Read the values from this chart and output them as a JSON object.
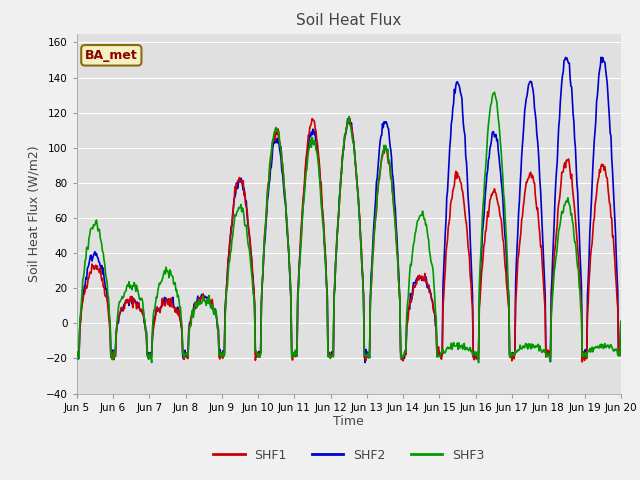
{
  "title": "Soil Heat Flux",
  "ylabel": "Soil Heat Flux (W/m2)",
  "xlabel": "Time",
  "ylim": [
    -40,
    165
  ],
  "yticks": [
    -40,
    -20,
    0,
    20,
    40,
    60,
    80,
    100,
    120,
    140,
    160
  ],
  "annotation_text": "BA_met",
  "colors": {
    "SHF1": "#cc0000",
    "SHF2": "#0000cc",
    "SHF3": "#009900"
  },
  "fig_bg": "#f0f0f0",
  "plot_bg": "#e0e0e0",
  "grid_color": "#ffffff",
  "linewidth": 1.2,
  "title_fontsize": 11,
  "tick_fontsize": 7.5,
  "label_fontsize": 9
}
